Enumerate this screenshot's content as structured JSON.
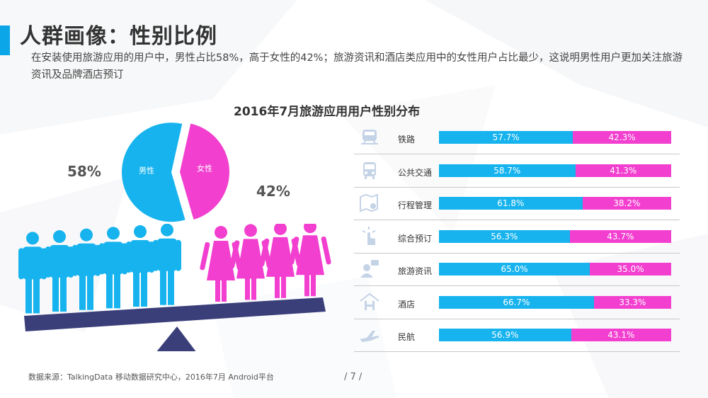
{
  "header": {
    "title": "人群画像：性别比例",
    "subtitle": "在安装使用旅游应用的用户中，男性占比58%，高于女性的42%；旅游资讯和酒店类应用中的女性用户占比最少，这说明男性用户更加关注旅游资讯及品牌酒店预订"
  },
  "colors": {
    "male": "#16b3ee",
    "female": "#f23fcf",
    "accent": "#0aa6e8",
    "base": "#3a3f7a"
  },
  "chart_data": [
    {
      "type": "pie",
      "labels": [
        "男性",
        "女性"
      ],
      "values": [
        58,
        42
      ],
      "value_labels": [
        "58%",
        "42%"
      ],
      "colors": [
        "#16b3ee",
        "#f23fcf"
      ]
    },
    {
      "type": "bar",
      "orientation": "horizontal",
      "stacked": true,
      "title": "2016年7月旅游应用用户性别分布",
      "categories": [
        "铁路",
        "公共交通",
        "行程管理",
        "综合预订",
        "旅游资讯",
        "酒店",
        "民航"
      ],
      "icons": [
        "train-icon",
        "bus-icon",
        "map-pin-icon",
        "touch-icon",
        "user-chat-icon",
        "hotel-icon",
        "airplane-icon"
      ],
      "series": [
        {
          "values": [
            57.7,
            58.7,
            61.8,
            56.3,
            65.0,
            66.7,
            56.9
          ],
          "labels": [
            "57.7%",
            "58.7%",
            "61.8%",
            "56.3%",
            "65.0%",
            "66.7%",
            "56.9%"
          ],
          "color": "#16b3ee"
        },
        {
          "values": [
            42.3,
            41.3,
            38.2,
            43.7,
            35.0,
            33.3,
            43.1
          ],
          "labels": [
            "42.3%",
            "41.3%",
            "38.2%",
            "43.7%",
            "35.0%",
            "33.3%",
            "43.1%"
          ],
          "color": "#f23fcf"
        }
      ],
      "xlim": [
        0,
        100
      ]
    }
  ],
  "footer": {
    "source": "数据来源：TalkingData 移动数据研究中心，2016年7月 Android平台",
    "page": "/ 7 /"
  }
}
